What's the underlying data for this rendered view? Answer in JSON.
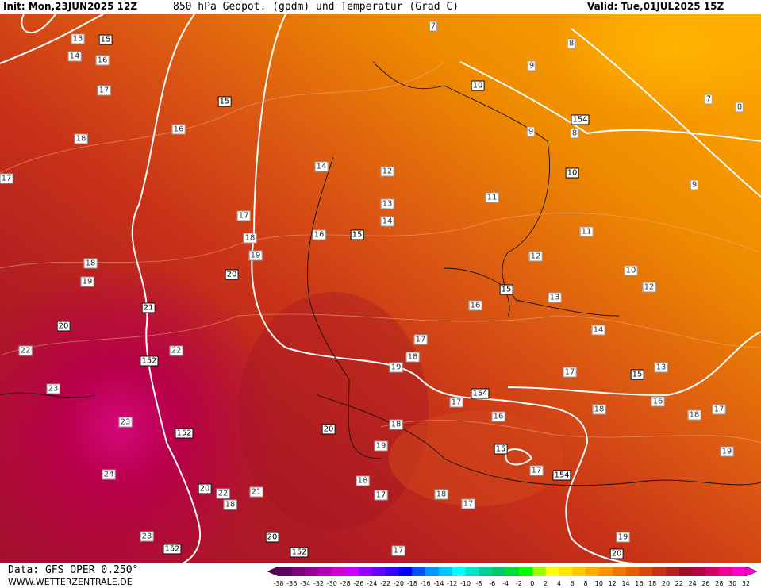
{
  "header": {
    "init": "Init: Mon,23JUN2025 12Z",
    "title": "850 hPa Geopot. (gpdm) und Temperatur (Grad C)",
    "valid": "Valid: Tue,01JUL2025 15Z"
  },
  "footer": {
    "data": "Data: GFS OPER 0.250°",
    "url": "WWW.WETTERZENTRALE.DE"
  },
  "colorbar": {
    "labels": [
      "-38",
      "-36",
      "-34",
      "-32",
      "-30",
      "-28",
      "-26",
      "-24",
      "-22",
      "-20",
      "-18",
      "-16",
      "-14",
      "-12",
      "-10",
      "-8",
      "-6",
      "-4",
      "-2",
      "0",
      "2",
      "4",
      "6",
      "8",
      "10",
      "12",
      "14",
      "16",
      "18",
      "20",
      "22",
      "24",
      "26",
      "28",
      "30",
      "32"
    ],
    "colors": [
      "#5a005a",
      "#780078",
      "#960096",
      "#b400b4",
      "#d200d2",
      "#c800ff",
      "#9600ff",
      "#6400ff",
      "#3200ff",
      "#0000ff",
      "#0050ff",
      "#0096ff",
      "#00c8ff",
      "#00ffff",
      "#00e6c8",
      "#00d296",
      "#00c864",
      "#00dc32",
      "#00ff00",
      "#96ff00",
      "#ffff00",
      "#ffe600",
      "#ffc800",
      "#ffaa00",
      "#ff9100",
      "#f07800",
      "#e65f00",
      "#dc4614",
      "#c83214",
      "#b41e1e",
      "#a00f28",
      "#b40046",
      "#d20064",
      "#f00096",
      "#ff00c8"
    ]
  },
  "contour_labels": [
    "13",
    "15",
    "14",
    "16",
    "17",
    "15",
    "16",
    "18",
    "17",
    "14",
    "12",
    "13",
    "14",
    "15",
    "16",
    "18",
    "17",
    "19",
    "18",
    "19",
    "20",
    "21",
    "20",
    "22",
    "22",
    "152",
    "23",
    "23",
    "152",
    "24",
    "20",
    "21",
    "22",
    "18",
    "23",
    "152",
    "20",
    "152",
    "17",
    "20",
    "19",
    "18",
    "18",
    "17",
    "18",
    "17",
    "15",
    "16",
    "17",
    "154",
    "19",
    "18",
    "17",
    "16",
    "15",
    "13",
    "14",
    "12",
    "11",
    "11",
    "10",
    "154",
    "9",
    "8",
    "10",
    "9",
    "8",
    "7",
    "7",
    "8",
    "9",
    "10",
    "12",
    "13",
    "15",
    "17",
    "16",
    "18",
    "18",
    "17",
    "19",
    "17",
    "154",
    "19",
    "20"
  ]
}
